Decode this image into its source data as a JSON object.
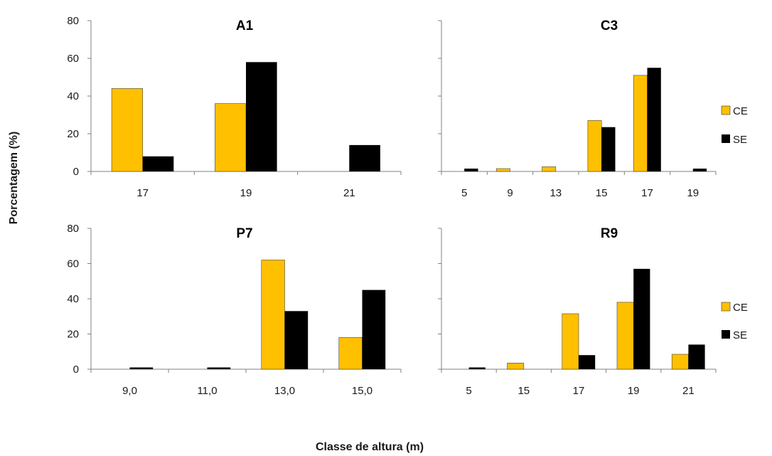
{
  "figure": {
    "ylabel": "Porcentagem (%)",
    "xlabel": "Classe de altura (m)"
  },
  "colors": {
    "CE": "#FFC000",
    "SE": "#000000",
    "axis": "#808080"
  },
  "legend": [
    "CE",
    "SE"
  ],
  "chart_data": [
    {
      "type": "bar",
      "title": "A1",
      "categories": [
        "17",
        "19",
        "21"
      ],
      "series": [
        {
          "name": "CE",
          "values": [
            44,
            36,
            0
          ]
        },
        {
          "name": "SE",
          "values": [
            8,
            58,
            14
          ]
        }
      ],
      "ylim": [
        0,
        80
      ],
      "yticks": [
        "0",
        "20",
        "40",
        "60",
        "80"
      ]
    },
    {
      "type": "bar",
      "title": "C3",
      "categories": [
        "5",
        "9",
        "13",
        "15",
        "17",
        "19"
      ],
      "series": [
        {
          "name": "CE",
          "values": [
            0,
            1.5,
            2.5,
            27,
            51,
            0
          ]
        },
        {
          "name": "SE",
          "values": [
            1.5,
            0,
            0,
            23.5,
            55,
            1.5
          ]
        }
      ],
      "ylim": [
        0,
        80
      ],
      "yticks": [
        "",
        "",
        "",
        "",
        ""
      ]
    },
    {
      "type": "bar",
      "title": "P7",
      "categories": [
        "9,0",
        "11,0",
        "13,0",
        "15,0"
      ],
      "series": [
        {
          "name": "CE",
          "values": [
            0,
            0,
            62,
            18
          ]
        },
        {
          "name": "SE",
          "values": [
            1,
            1,
            33,
            45
          ]
        }
      ],
      "ylim": [
        0,
        80
      ],
      "yticks": [
        "0",
        "20",
        "40",
        "60",
        "80"
      ]
    },
    {
      "type": "bar",
      "title": "R9",
      "categories": [
        "5",
        "15",
        "17",
        "19",
        "21"
      ],
      "series": [
        {
          "name": "CE",
          "values": [
            0,
            3.5,
            31.5,
            38,
            8.5
          ]
        },
        {
          "name": "SE",
          "values": [
            1,
            0,
            8,
            57,
            14
          ]
        }
      ],
      "ylim": [
        0,
        80
      ],
      "yticks": [
        "",
        "",
        "",
        "",
        ""
      ]
    }
  ]
}
